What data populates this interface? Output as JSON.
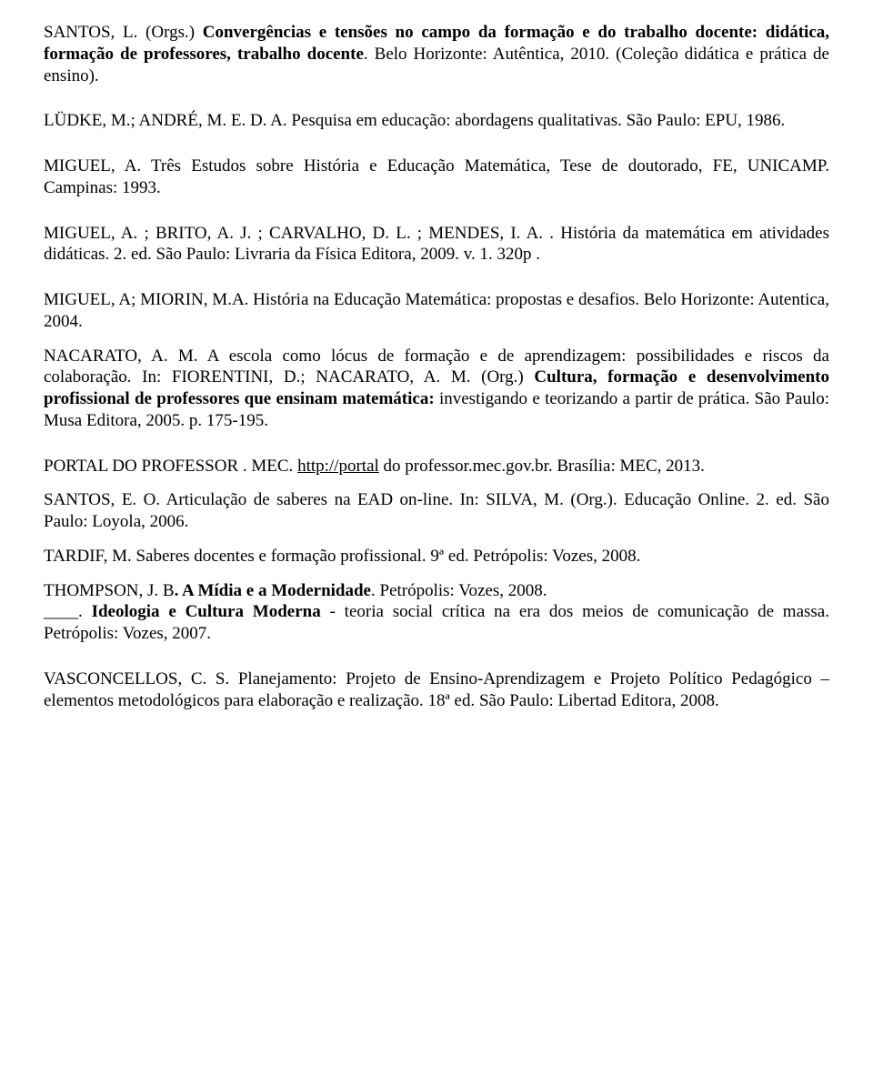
{
  "refs": {
    "santos_l": {
      "pre": "SANTOS, L. (Orgs.) ",
      "title": "Convergências e tensões no campo da formação e do trabalho docente: didática, formação de professores, trabalho docente",
      "post": ". Belo Horizonte: Autêntica, 2010. (Coleção didática e prática de ensino)."
    },
    "ludke": "LÜDKE, M.; ANDRÉ, M. E. D. A. Pesquisa em educação: abordagens qualitativas. São Paulo: EPU, 1986.",
    "miguel_a1": "MIGUEL, A. Três Estudos sobre História e Educação Matemática, Tese de doutorado, FE, UNICAMP. Campinas: 1993.",
    "miguel_a2": "MIGUEL, A. ; BRITO, A. J. ; CARVALHO, D. L. ; MENDES, I. A. . História da matemática em atividades didáticas. 2. ed. São Paulo: Livraria da Física Editora, 2009. v. 1. 320p .",
    "miguel_miorin": "MIGUEL, A; MIORIN, M.A. História na Educação Matemática: propostas e desafios. Belo Horizonte: Autentica, 2004.",
    "nacarato": {
      "pre": "NACARATO, A. M. A escola como lócus de formação e de aprendizagem: possibilidades e riscos da colaboração. In: FIORENTINI, D.; NACARATO, A. M. (Org.) ",
      "bold1": "Cultura, formação e desenvolvimento profissional de professores que ensinam matemática:",
      "mid": " investigando e teorizando a partir de prática. São Paulo: Musa Editora, 2005. p. 175-195."
    },
    "portal": {
      "pre": "PORTAL DO PROFESSOR . MEC. ",
      "link": "http://portal",
      "post": " do professor.mec.gov.br. Brasília: MEC, 2013."
    },
    "santos_eo": "SANTOS, E. O. Articulação de saberes na EAD on-line. In: SILVA, M. (Org.). Educação Online. 2. ed. São Paulo: Loyola, 2006.",
    "tardif": "TARDIF, M. Saberes docentes e formação profissional. 9ª ed. Petrópolis: Vozes, 2008.",
    "thompson1": {
      "pre": "THOMPSON, J. B",
      "bold": ". A Mídia e a Modernidade",
      "post": ". Petrópolis: Vozes, 2008."
    },
    "thompson2": {
      "pre": "____. ",
      "bold": "Ideologia e Cultura Moderna ",
      "post": "- teoria social crítica na era dos meios de comunicação de massa. Petrópolis: Vozes, 2007."
    },
    "vasconcellos": "VASCONCELLOS, C. S. Planejamento: Projeto de Ensino-Aprendizagem e Projeto Político Pedagógico – elementos metodológicos para elaboração e realização. 18ª ed. São Paulo: Libertad Editora, 2008."
  }
}
